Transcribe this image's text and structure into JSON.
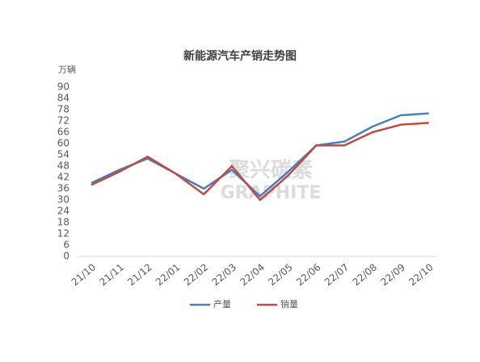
{
  "chart_data": {
    "type": "line",
    "title": "新能源汽车产销走势图",
    "y_label": "万辆",
    "categories": [
      "21/10",
      "21/11",
      "21/12",
      "22/01",
      "22/02",
      "22/03",
      "22/04",
      "22/05",
      "22/06",
      "22/07",
      "22/08",
      "22/09",
      "22/10"
    ],
    "series": [
      {
        "name": "产量",
        "color": "#4a7ebb",
        "values": [
          39,
          46,
          52,
          44,
          36,
          46,
          32,
          45,
          59,
          61,
          69,
          75,
          76
        ]
      },
      {
        "name": "销量",
        "color": "#be4b48",
        "values": [
          38,
          45,
          53,
          44,
          33,
          48,
          30,
          43,
          59,
          59,
          66,
          70,
          71
        ]
      }
    ],
    "ylim": [
      0,
      90
    ],
    "yticks": [
      0,
      6,
      12,
      18,
      24,
      30,
      36,
      42,
      48,
      54,
      60,
      66,
      72,
      78,
      84,
      90
    ],
    "grid": false,
    "legend": "bottom",
    "watermark": [
      "聚兴碳素",
      "GRAPHITE"
    ]
  }
}
